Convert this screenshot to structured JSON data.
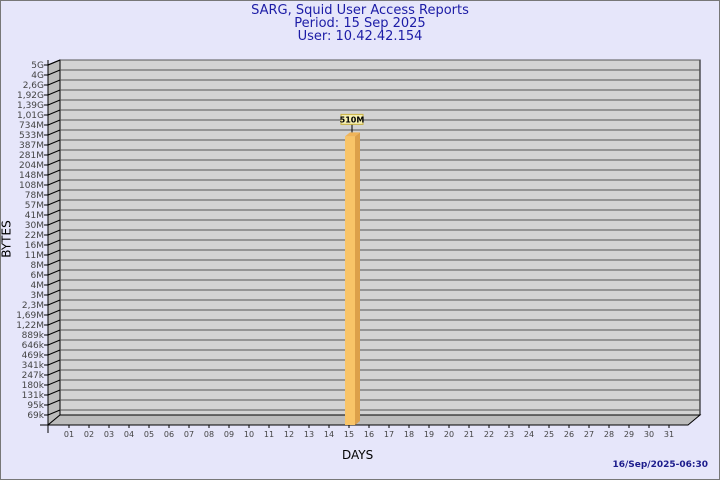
{
  "header": {
    "title": "SARG, Squid User Access Reports",
    "period": "Period: 15 Sep 2025",
    "user": "User: 10.42.42.154"
  },
  "footer": {
    "timestamp": "16/Sep/2025-06:30"
  },
  "chart_data": {
    "type": "bar",
    "xlabel": "DAYS",
    "ylabel": "BYTES",
    "yscale": "log",
    "categories": [
      "01",
      "02",
      "03",
      "04",
      "05",
      "06",
      "07",
      "08",
      "09",
      "10",
      "11",
      "12",
      "13",
      "14",
      "15",
      "16",
      "17",
      "18",
      "19",
      "20",
      "21",
      "22",
      "23",
      "24",
      "25",
      "26",
      "27",
      "28",
      "29",
      "30",
      "31"
    ],
    "values": [
      0,
      0,
      0,
      0,
      0,
      0,
      0,
      0,
      0,
      0,
      0,
      0,
      0,
      0,
      510000000,
      0,
      0,
      0,
      0,
      0,
      0,
      0,
      0,
      0,
      0,
      0,
      0,
      0,
      0,
      0,
      0
    ],
    "data_labels": {
      "15": "510M"
    },
    "yticks": [
      "5G",
      "4G",
      "2,6G",
      "1,92G",
      "1,39G",
      "1,01G",
      "734M",
      "533M",
      "387M",
      "281M",
      "204M",
      "148M",
      "108M",
      "78M",
      "57M",
      "41M",
      "30M",
      "22M",
      "16M",
      "11M",
      "8M",
      "6M",
      "4M",
      "3M",
      "2,3M",
      "1,69M",
      "1,22M",
      "889k",
      "646k",
      "469k",
      "341k",
      "247k",
      "180k",
      "131k",
      "95k",
      "69k"
    ],
    "grid": true,
    "colors": {
      "background": "#e6e6fa",
      "wall": "#d3d3d3",
      "bar_front": "#f8c468",
      "bar_side": "#dca04a",
      "title": "#1c1ca6"
    }
  }
}
